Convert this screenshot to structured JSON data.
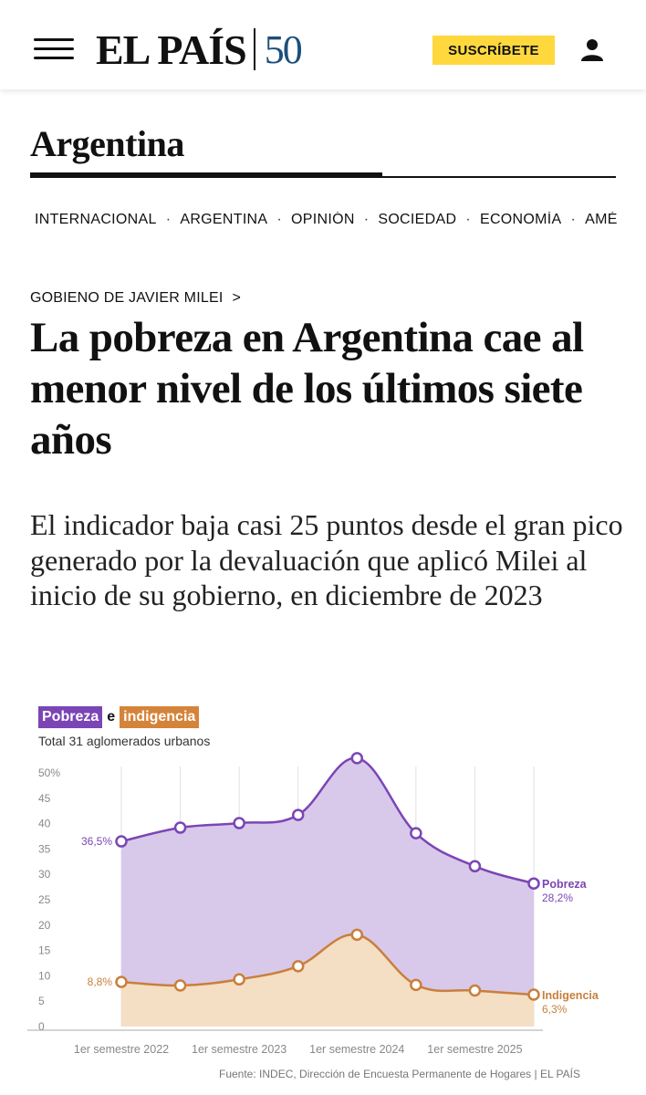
{
  "header": {
    "logo_text": "EL PAÍS",
    "logo_anniversary": "50",
    "subscribe_label": "SUSCRÍBETE"
  },
  "section": {
    "title": "Argentina"
  },
  "nav": {
    "items": [
      "INTERNACIONAL",
      "ARGENTINA",
      "OPINIÓN",
      "SOCIEDAD",
      "ECONOMÍA",
      "AMÉ"
    ]
  },
  "article": {
    "kicker": "GOBIENO DE JAVIER MILEI",
    "kicker_arrow": ">",
    "headline": "La pobreza en Argentina cae al menor nivel de los últimos siete años",
    "standfirst": "El indicador baja casi 25 puntos desde el gran pico generado por la devaluación que aplicó Milei al inicio de su gobierno, en diciembre de 2023"
  },
  "chart_data": {
    "type": "area",
    "title_part1": "Pobreza",
    "title_connector": "e",
    "title_part2": "indigencia",
    "subtitle": "Total 31 aglomerados urbanos",
    "x_labels": [
      "1er semestre 2022",
      "1er semestre 2023",
      "1er semestre 2024",
      "1er semestre 2025"
    ],
    "y_ticks": [
      "50%",
      "45",
      "40",
      "35",
      "30",
      "25",
      "20",
      "15",
      "10",
      "5",
      "0"
    ],
    "ylim": [
      0,
      50
    ],
    "series": [
      {
        "name": "Pobreza",
        "color": "#7b45b5",
        "fill": "#d6c6ea",
        "values": [
          36.5,
          39.2,
          40.1,
          41.7,
          52.9,
          38.1,
          31.6,
          28.2
        ],
        "start_label": "36,5%",
        "end_label": "28,2%"
      },
      {
        "name": "Indigencia",
        "color": "#c97f3b",
        "fill": "#f6dfc2",
        "values": [
          8.8,
          8.1,
          9.3,
          11.9,
          18.1,
          8.2,
          7.1,
          6.3
        ],
        "start_label": "8,8%",
        "end_label": "6,3%"
      }
    ],
    "source": "Fuente: INDEC, Dirección de Encuesta Permanente de Hogares | EL PAÍS"
  }
}
